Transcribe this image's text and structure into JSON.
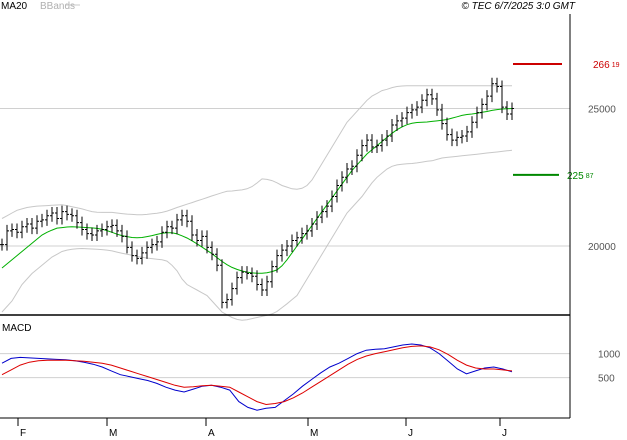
{
  "header": {
    "legend_ma": "MA20",
    "legend_bb": "BBands",
    "copyright": "© TEC 6/7/2025 3:0 GMT"
  },
  "colors": {
    "ma": "#00b000",
    "bands": "#c8c8c8",
    "candle": "#000000",
    "grid": "#d0d0d0",
    "resistance": "#cc0000",
    "support": "#008800",
    "macd": "#0000cc",
    "signal": "#dd0000"
  },
  "chart_data": [
    {
      "type": "candlestick",
      "title": "",
      "ylim": [
        17600,
        28400
      ],
      "y_ticks": [
        20000,
        25000
      ],
      "y_tick_labels": [
        "20000",
        "25000"
      ],
      "x_tick_labels": [
        "F",
        "M",
        "A",
        "M",
        "J",
        "J"
      ],
      "grid": true,
      "resistance": {
        "value": 26619,
        "label_main": "266",
        "label_sup": "19"
      },
      "support": {
        "value": 22587,
        "label_main": "225",
        "label_sup": "87"
      },
      "close": [
        20050,
        20550,
        20600,
        20500,
        20700,
        20800,
        20650,
        20900,
        20950,
        21100,
        21200,
        21000,
        21250,
        21150,
        21100,
        20850,
        20600,
        20450,
        20400,
        20550,
        20600,
        20700,
        20750,
        20550,
        20350,
        19950,
        19650,
        19550,
        19750,
        19950,
        20050,
        20150,
        20500,
        20700,
        20650,
        20950,
        21100,
        20900,
        20400,
        20200,
        20350,
        19950,
        19700,
        19300,
        17950,
        18050,
        18450,
        18850,
        19050,
        19000,
        18900,
        18600,
        18400,
        18700,
        19250,
        19650,
        19850,
        20000,
        20200,
        20300,
        20450,
        20550,
        20800,
        21050,
        21250,
        21450,
        21800,
        22200,
        22500,
        22800,
        22900,
        23300,
        23650,
        23850,
        23600,
        23650,
        23850,
        24000,
        24400,
        24550,
        24650,
        24850,
        24950,
        25050,
        25300,
        25500,
        25350,
        24950,
        24450,
        24050,
        23850,
        23950,
        24000,
        24150,
        24500,
        24850,
        25150,
        25450,
        25900,
        25800,
        25050,
        24800,
        25000
      ],
      "ma20": [
        19200,
        19350,
        19500,
        19650,
        19800,
        19950,
        20100,
        20250,
        20400,
        20500,
        20580,
        20650,
        20670,
        20690,
        20700,
        20690,
        20680,
        20670,
        20660,
        20640,
        20610,
        20560,
        20500,
        20430,
        20380,
        20340,
        20310,
        20300,
        20310,
        20340,
        20380,
        20420,
        20460,
        20480,
        20480,
        20440,
        20370,
        20290,
        20190,
        20080,
        19960,
        19840,
        19720,
        19580,
        19440,
        19320,
        19220,
        19150,
        19090,
        19050,
        19020,
        19010,
        19010,
        19030,
        19070,
        19130,
        19280,
        19500,
        19750,
        20000,
        20250,
        20500,
        20750,
        21000,
        21250,
        21500,
        21750,
        22000,
        22250,
        22500,
        22750,
        22950,
        23150,
        23350,
        23500,
        23650,
        23800,
        23950,
        24100,
        24230,
        24330,
        24410,
        24460,
        24490,
        24500,
        24510,
        24530,
        24550,
        24570,
        24600,
        24650,
        24700,
        24750,
        24780,
        24800,
        24830,
        24860,
        24890,
        24930,
        24960,
        24980,
        24990,
        25000
      ],
      "bb_upper": [
        21000,
        21100,
        21200,
        21300,
        21350,
        21400,
        21430,
        21450,
        21460,
        21470,
        21480,
        21490,
        21500,
        21470,
        21430,
        21390,
        21350,
        21300,
        21250,
        21230,
        21220,
        21220,
        21220,
        21200,
        21180,
        21160,
        21150,
        21140,
        21140,
        21150,
        21170,
        21190,
        21220,
        21270,
        21330,
        21400,
        21460,
        21520,
        21580,
        21640,
        21700,
        21760,
        21820,
        21880,
        21940,
        21990,
        22000,
        22020,
        22040,
        22080,
        22160,
        22290,
        22440,
        22420,
        22380,
        22300,
        22200,
        22140,
        22080,
        22060,
        22100,
        22200,
        22400,
        22700,
        23000,
        23300,
        23600,
        23900,
        24200,
        24500,
        24700,
        24900,
        25100,
        25300,
        25450,
        25550,
        25650,
        25700,
        25760,
        25800,
        25820,
        25830,
        25830,
        25830,
        25830,
        25830,
        25830,
        25830,
        25830,
        25830,
        25830,
        25830,
        25830,
        25830,
        25830,
        25830,
        25830,
        25830,
        25830,
        25830,
        25830,
        25830,
        25830
      ],
      "bb_lower": [
        17600,
        17800,
        18000,
        18300,
        18600,
        18800,
        19000,
        19150,
        19300,
        19450,
        19600,
        19700,
        19800,
        19850,
        19880,
        19900,
        19910,
        19900,
        19890,
        19880,
        19870,
        19850,
        19820,
        19780,
        19740,
        19700,
        19660,
        19620,
        19590,
        19560,
        19540,
        19520,
        19500,
        19450,
        19300,
        19100,
        18800,
        18600,
        18500,
        18400,
        18300,
        18200,
        18000,
        17800,
        17600,
        17500,
        17400,
        17330,
        17300,
        17320,
        17360,
        17400,
        17440,
        17480,
        17530,
        17620,
        17760,
        17900,
        18050,
        18200,
        18500,
        18800,
        19100,
        19400,
        19700,
        20000,
        20300,
        20600,
        20900,
        21200,
        21400,
        21600,
        21800,
        22050,
        22300,
        22500,
        22650,
        22800,
        22900,
        22950,
        22970,
        22990,
        23000,
        23020,
        23050,
        23080,
        23100,
        23150,
        23200,
        23220,
        23240,
        23260,
        23280,
        23300,
        23320,
        23340,
        23360,
        23380,
        23400,
        23420,
        23440,
        23460,
        23480
      ]
    },
    {
      "type": "line",
      "title": "MACD",
      "ylim": [
        -300,
        1700
      ],
      "y_ticks": [
        500,
        1000
      ],
      "y_tick_labels": [
        "500",
        "1000"
      ],
      "series": [
        {
          "values": [
            800,
            900,
            920,
            910,
            900,
            890,
            880,
            870,
            850,
            820,
            780,
            720,
            640,
            560,
            520,
            480,
            440,
            380,
            300,
            240,
            200,
            260,
            320,
            340,
            300,
            240,
            0,
            -120,
            -180,
            -140,
            -120,
            20,
            160,
            320,
            460,
            600,
            720,
            800,
            900,
            1000,
            1070,
            1090,
            1100,
            1140,
            1180,
            1200,
            1180,
            1120,
            1000,
            840,
            680,
            580,
            640,
            700,
            720,
            680,
            620
          ]
        },
        {
          "values": [
            560,
            660,
            760,
            820,
            850,
            860,
            860,
            860,
            850,
            840,
            820,
            800,
            760,
            700,
            640,
            580,
            520,
            460,
            400,
            340,
            300,
            310,
            330,
            340,
            320,
            300,
            200,
            100,
            0,
            -60,
            -40,
            0,
            80,
            180,
            300,
            420,
            540,
            660,
            780,
            880,
            950,
            1000,
            1040,
            1080,
            1120,
            1150,
            1160,
            1140,
            1080,
            980,
            860,
            760,
            700,
            680,
            680,
            660,
            640
          ]
        }
      ]
    }
  ]
}
